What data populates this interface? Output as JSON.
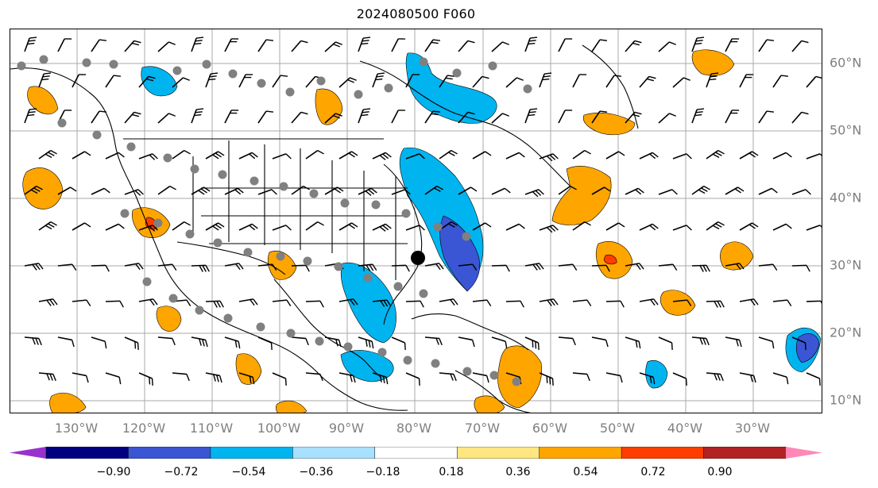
{
  "title": "2024080500 F060",
  "axes": {
    "lon_labels": [
      "130°W",
      "120°W",
      "110°W",
      "100°W",
      "90°W",
      "80°W",
      "70°W",
      "60°W",
      "50°W",
      "40°W",
      "30°W"
    ],
    "lat_labels": [
      "60°N",
      "50°N",
      "40°N",
      "30°N",
      "20°N",
      "10°N"
    ]
  },
  "colorbar": {
    "ticks": [
      "−0.90",
      "−0.72",
      "−0.54",
      "−0.36",
      "−0.18",
      "0.18",
      "0.36",
      "0.54",
      "0.72",
      "0.90"
    ],
    "under_color": "#9932CC",
    "over_color": "#FF88B8",
    "colors": [
      "#000080",
      "#3A56D4",
      "#00B4F0",
      "#A8E0FF",
      "#FFFFFF",
      "#FFE680",
      "#FFA500",
      "#FF3D00",
      "#B22222"
    ]
  },
  "markers": {
    "highlight_color": "#000000",
    "station_color": "#808080"
  },
  "colors": {
    "grid": "#a9a9a9",
    "coast": "#000000",
    "barb": "#000000"
  }
}
